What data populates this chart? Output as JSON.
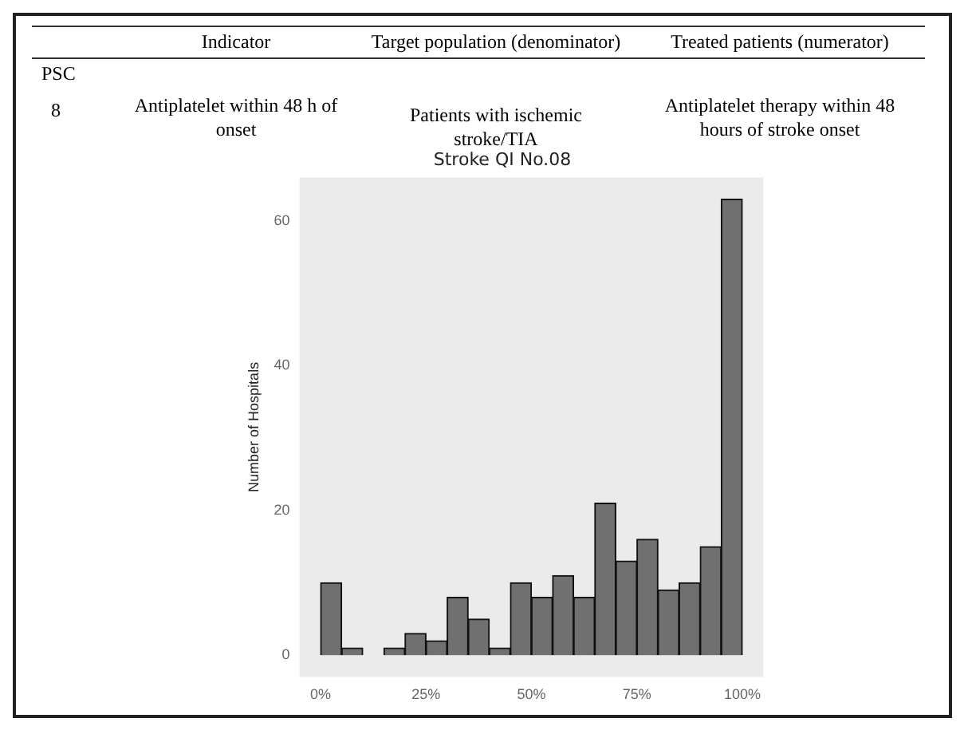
{
  "chart_data": {
    "type": "histogram",
    "title": "Stroke QI No.08",
    "ylabel": "Number of Hospitals",
    "bins": [
      0,
      5,
      10,
      15,
      20,
      25,
      30,
      35,
      40,
      45,
      50,
      55,
      60,
      65,
      70,
      75,
      80,
      85,
      90,
      95,
      100
    ],
    "values": [
      10,
      1,
      0,
      1,
      3,
      2,
      8,
      5,
      1,
      10,
      8,
      11,
      8,
      21,
      13,
      16,
      9,
      10,
      15,
      63
    ],
    "color": "#707070",
    "xlim": [
      -5,
      105
    ],
    "xticks": [
      {
        "value": 0,
        "label": "0%"
      },
      {
        "value": 25,
        "label": "25%"
      },
      {
        "value": 50,
        "label": "50%"
      },
      {
        "value": 75,
        "label": "75%"
      },
      {
        "value": 100,
        "label": "100%"
      }
    ],
    "ylim": [
      -3,
      66
    ],
    "yticks": [
      0,
      20,
      40,
      60
    ],
    "grid": false,
    "legend": false,
    "annotations": [
      "Indicator",
      "Target population (denominator)",
      "Treated patients (numerator)",
      "PSC",
      "8",
      "Antiplatelet within 48 h of onset",
      "Patients with ischemic stroke/TIA",
      "Antiplatelet therapy within  48 hours of stroke onset"
    ]
  }
}
